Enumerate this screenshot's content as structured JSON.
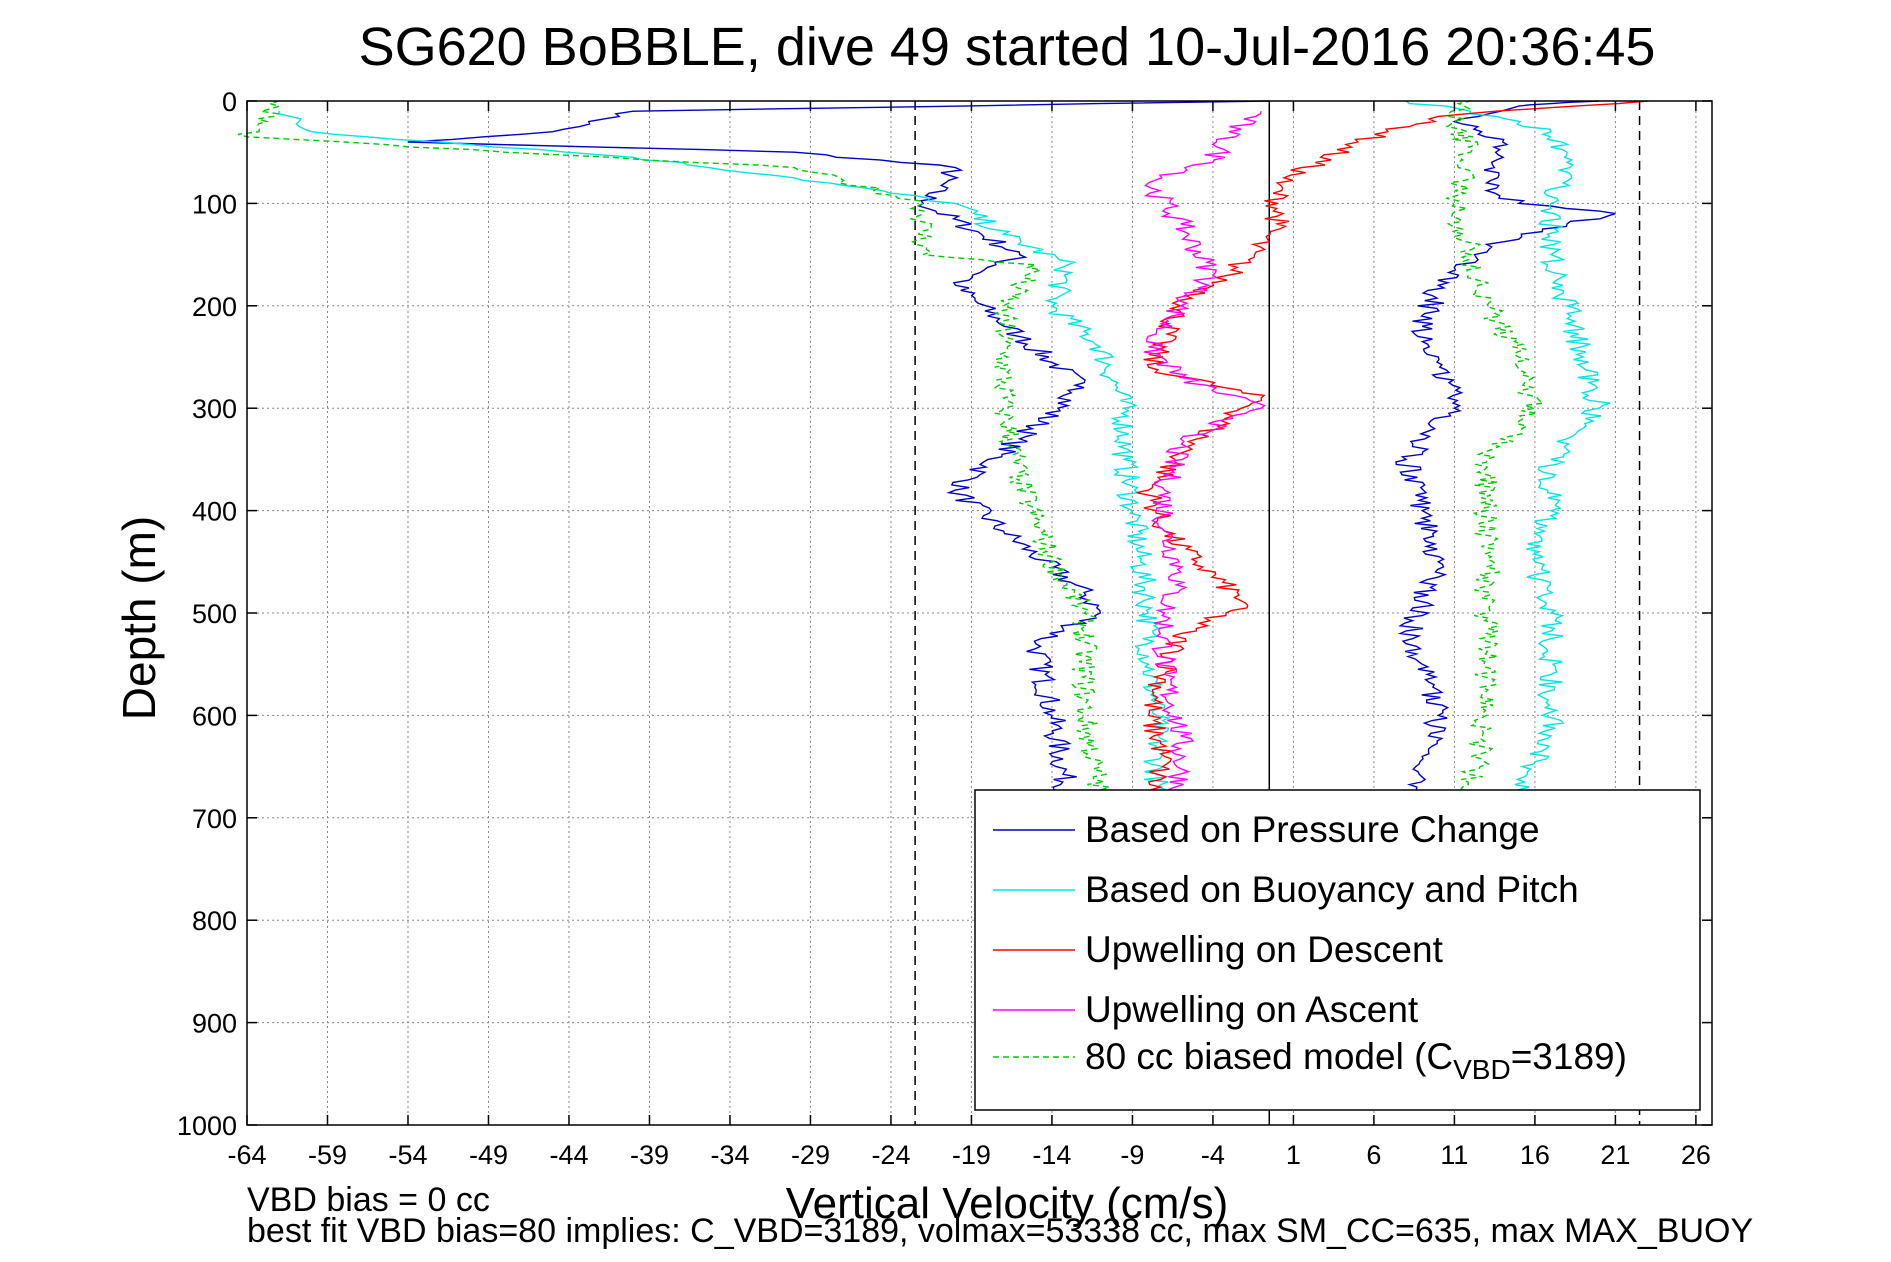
{
  "chart_data": {
    "type": "line",
    "title": "SG620 BoBBLE, dive 49 started 10-Jul-2016 20:36:45",
    "xlabel": "Vertical Velocity (cm/s)",
    "ylabel": "Depth (m)",
    "xlim": [
      -64,
      27
    ],
    "ylim": [
      0,
      1000
    ],
    "y_reversed": true,
    "grid": true,
    "xticks": [
      -64,
      -59,
      -54,
      -49,
      -44,
      -39,
      -34,
      -29,
      -24,
      -19,
      -14,
      -9,
      -4,
      1,
      6,
      11,
      16,
      21,
      26
    ],
    "yticks": [
      0,
      100,
      200,
      300,
      400,
      500,
      600,
      700,
      800,
      900,
      1000
    ],
    "reference_lines": {
      "dashed_x": [
        -22.5,
        22.5
      ],
      "solid_x": [
        -0.5
      ]
    },
    "legend_position": "bottom-right",
    "series": [
      {
        "name": "Based on Pressure Change",
        "color": "#0000cc",
        "style": "solid",
        "descent": [
          [
            -0.5,
            0
          ],
          [
            -40,
            10
          ],
          [
            -45,
            30
          ],
          [
            -54,
            40
          ],
          [
            -30,
            50
          ],
          [
            -20,
            65
          ],
          [
            -22,
            100
          ],
          [
            -16,
            150
          ],
          [
            -20,
            180
          ],
          [
            -16,
            230
          ],
          [
            -12,
            280
          ],
          [
            -16,
            330
          ],
          [
            -20,
            380
          ],
          [
            -17,
            420
          ],
          [
            -12,
            480
          ],
          [
            -11,
            500
          ],
          [
            -15,
            530
          ],
          [
            -14,
            600
          ],
          [
            -13,
            680
          ]
        ],
        "ascent": [
          [
            8,
            680
          ],
          [
            9,
            640
          ],
          [
            10,
            600
          ],
          [
            9,
            550
          ],
          [
            8,
            530
          ],
          [
            10,
            450
          ],
          [
            9,
            400
          ],
          [
            8,
            350
          ],
          [
            11,
            300
          ],
          [
            10,
            250
          ],
          [
            9,
            220
          ],
          [
            10,
            180
          ],
          [
            13,
            140
          ],
          [
            18,
            120
          ],
          [
            21,
            110
          ],
          [
            15,
            100
          ],
          [
            13,
            80
          ],
          [
            14,
            40
          ],
          [
            11,
            20
          ],
          [
            15,
            5
          ],
          [
            20,
            0
          ]
        ]
      },
      {
        "name": "Based on Buoyancy and Pitch",
        "color": "#00e5e5",
        "style": "solid",
        "descent": [
          [
            -62,
            10
          ],
          [
            -60,
            30
          ],
          [
            -40,
            55
          ],
          [
            -30,
            75
          ],
          [
            -20,
            100
          ],
          [
            -17,
            130
          ],
          [
            -13,
            160
          ],
          [
            -14,
            200
          ],
          [
            -11,
            240
          ],
          [
            -9.5,
            300
          ],
          [
            -9.5,
            350
          ],
          [
            -9,
            400
          ],
          [
            -8.5,
            450
          ],
          [
            -8,
            500
          ],
          [
            -8,
            550
          ],
          [
            -7.5,
            600
          ],
          [
            -7.5,
            680
          ]
        ],
        "ascent": [
          [
            15,
            680
          ],
          [
            17,
            620
          ],
          [
            17,
            560
          ],
          [
            17,
            500
          ],
          [
            16,
            450
          ],
          [
            17,
            400
          ],
          [
            17,
            350
          ],
          [
            20,
            300
          ],
          [
            19,
            250
          ],
          [
            18,
            200
          ],
          [
            17,
            150
          ],
          [
            17,
            100
          ],
          [
            18,
            60
          ],
          [
            17,
            30
          ],
          [
            12,
            10
          ],
          [
            8,
            0
          ]
        ]
      },
      {
        "name": "Upwelling on Descent",
        "color": "#ff0000",
        "style": "solid",
        "values": [
          [
            23,
            0
          ],
          [
            10,
            15
          ],
          [
            5,
            40
          ],
          [
            0,
            80
          ],
          [
            0,
            120
          ],
          [
            -3,
            170
          ],
          [
            -6,
            200
          ],
          [
            -8,
            260
          ],
          [
            -1,
            290
          ],
          [
            -5,
            330
          ],
          [
            -8,
            380
          ],
          [
            -7,
            420
          ],
          [
            -5,
            450
          ],
          [
            -2,
            490
          ],
          [
            -6,
            520
          ],
          [
            -7,
            560
          ],
          [
            -8,
            600
          ],
          [
            -7,
            640
          ],
          [
            -8,
            680
          ]
        ]
      },
      {
        "name": "Upwelling on Ascent",
        "color": "#ff00ff",
        "style": "solid",
        "values": [
          [
            -1,
            10
          ],
          [
            -3,
            30
          ],
          [
            -4,
            60
          ],
          [
            -8,
            80
          ],
          [
            -6,
            120
          ],
          [
            -4,
            170
          ],
          [
            -6,
            200
          ],
          [
            -8,
            240
          ],
          [
            -6,
            270
          ],
          [
            -1,
            300
          ],
          [
            -6,
            330
          ],
          [
            -7,
            380
          ],
          [
            -7,
            420
          ],
          [
            -6,
            460
          ],
          [
            -7,
            500
          ],
          [
            -7,
            560
          ],
          [
            -6,
            620
          ],
          [
            -6,
            680
          ]
        ]
      },
      {
        "name": "80 cc biased model (C",
        "name_sub": "VBD",
        "name_end": "=3189)",
        "color": "#00cc00",
        "style": "dashed",
        "descent": [
          [
            -62,
            0
          ],
          [
            -64,
            35
          ],
          [
            -48,
            50
          ],
          [
            -30,
            65
          ],
          [
            -22,
            100
          ],
          [
            -22,
            150
          ],
          [
            -15,
            160
          ],
          [
            -17,
            200
          ],
          [
            -17,
            300
          ],
          [
            -16,
            370
          ],
          [
            -14,
            450
          ],
          [
            -12,
            500
          ],
          [
            -12,
            600
          ],
          [
            -11,
            680
          ]
        ],
        "ascent": [
          [
            12,
            680
          ],
          [
            13,
            600
          ],
          [
            13,
            500
          ],
          [
            13,
            400
          ],
          [
            13,
            350
          ],
          [
            16,
            300
          ],
          [
            15,
            250
          ],
          [
            13,
            200
          ],
          [
            12,
            150
          ],
          [
            11,
            100
          ],
          [
            12,
            50
          ],
          [
            11,
            20
          ],
          [
            12,
            0
          ]
        ]
      }
    ],
    "footer": {
      "line1": "VBD bias = 0 cc",
      "line2": "best fit VBD bias=80 implies: C_VBD=3189, volmax=53338 cc, max SM_CC=635, max MAX_BUOY"
    }
  }
}
